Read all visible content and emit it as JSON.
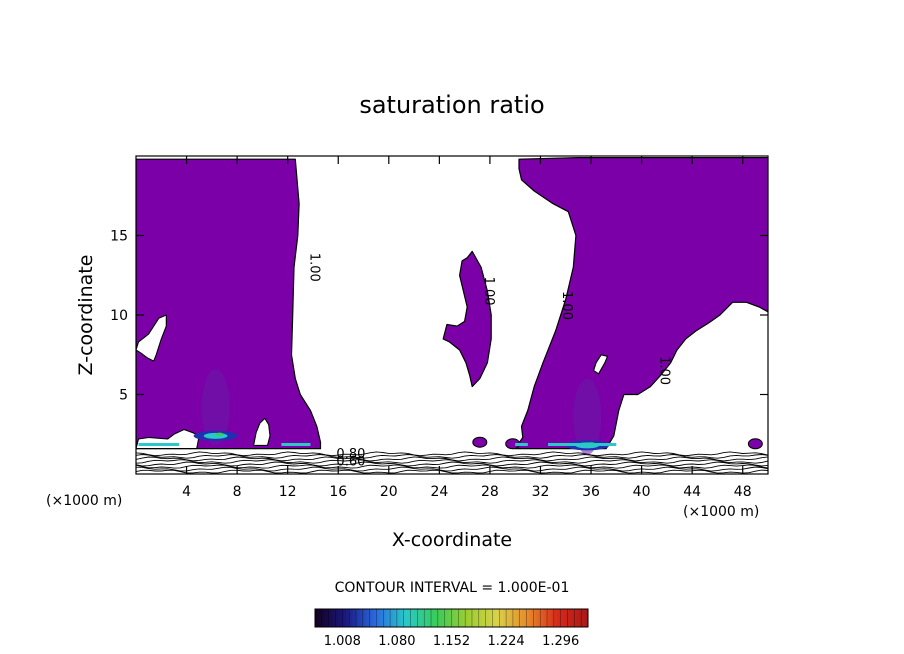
{
  "chart_data": {
    "type": "contour",
    "title": "saturation ratio",
    "xlabel": "X-coordinate",
    "ylabel": "Z-coordinate",
    "x_unit": "(×1000 m)",
    "y_unit": "(×1000 m)",
    "xlim": [
      0,
      50
    ],
    "ylim": [
      0,
      20
    ],
    "x_ticks": [
      4,
      8,
      12,
      16,
      20,
      24,
      28,
      32,
      36,
      40,
      44,
      48
    ],
    "x_tick_labels": [
      "4",
      "8",
      "12",
      "16",
      "20",
      "24",
      "28",
      "32",
      "36",
      "40",
      "44",
      "48"
    ],
    "y_ticks": [
      5,
      10,
      15
    ],
    "y_tick_labels": [
      "5",
      "10",
      "15"
    ],
    "contour_interval_label": "CONTOUR INTERVAL = 1.000E-01",
    "contour_labels": [
      {
        "text": "1.00",
        "x": 13.8,
        "z": 13.0
      },
      {
        "text": "1.00",
        "x": 27.6,
        "z": 11.5
      },
      {
        "text": "1.00",
        "x": 33.8,
        "z": 10.6
      },
      {
        "text": "1.00",
        "x": 41.5,
        "z": 6.5
      },
      {
        "text": "0.80",
        "x": 17.0,
        "z": 1.0
      },
      {
        "text": "0.60",
        "x": 17.0,
        "z": 0.55
      }
    ],
    "supersaturated_regions": [
      {
        "name": "left",
        "outline": [
          [
            0,
            19.8
          ],
          [
            12.6,
            19.8
          ],
          [
            12.9,
            17
          ],
          [
            12.8,
            15
          ],
          [
            12.5,
            13
          ],
          [
            12.4,
            10
          ],
          [
            12.3,
            7.5
          ],
          [
            12.6,
            6
          ],
          [
            13,
            5
          ],
          [
            13.8,
            4
          ],
          [
            14.3,
            3
          ],
          [
            14.6,
            2
          ],
          [
            14.6,
            1.6
          ],
          [
            0,
            1.6
          ]
        ]
      },
      {
        "name": "right",
        "outline": [
          [
            30.3,
            19.8
          ],
          [
            35,
            19.9
          ],
          [
            50,
            19.9
          ],
          [
            50,
            10.2
          ],
          [
            49.3,
            10.5
          ],
          [
            48.3,
            10.8
          ],
          [
            47.2,
            10.8
          ],
          [
            46.2,
            10
          ],
          [
            45.3,
            9.5
          ],
          [
            44.3,
            9
          ],
          [
            43.5,
            8.5
          ],
          [
            42.8,
            7.8
          ],
          [
            42.3,
            7
          ],
          [
            41.5,
            6.2
          ],
          [
            40.7,
            5.5
          ],
          [
            39.7,
            5
          ],
          [
            38.6,
            5
          ],
          [
            38.2,
            4
          ],
          [
            38,
            3.2
          ],
          [
            37.8,
            2.4
          ],
          [
            37.2,
            1.6
          ],
          [
            30,
            1.6
          ],
          [
            30.6,
            2.3
          ],
          [
            30.5,
            3
          ],
          [
            31,
            4
          ],
          [
            31.5,
            5.5
          ],
          [
            32.2,
            7
          ],
          [
            33.2,
            9
          ],
          [
            34,
            11
          ],
          [
            34.6,
            13
          ],
          [
            34.8,
            15
          ],
          [
            34.2,
            16.5
          ],
          [
            33,
            17
          ],
          [
            31.5,
            17.8
          ],
          [
            30.5,
            18.5
          ],
          [
            30.3,
            19.2
          ]
        ]
      },
      {
        "name": "island",
        "outline": [
          [
            26.2,
            13.6
          ],
          [
            26.6,
            14
          ],
          [
            27.3,
            13
          ],
          [
            27.8,
            11.5
          ],
          [
            28.1,
            10
          ],
          [
            28.1,
            8.5
          ],
          [
            27.8,
            7
          ],
          [
            27.2,
            6
          ],
          [
            26.6,
            5.5
          ],
          [
            26.4,
            6.2
          ],
          [
            26.1,
            7
          ],
          [
            25.6,
            7.8
          ],
          [
            24.8,
            8.3
          ],
          [
            24.3,
            8.5
          ],
          [
            24.6,
            9.4
          ],
          [
            25.4,
            9.3
          ],
          [
            26,
            9.6
          ],
          [
            26.2,
            10.5
          ],
          [
            25.9,
            11.5
          ],
          [
            25.6,
            12.5
          ],
          [
            25.8,
            13.4
          ]
        ]
      }
    ],
    "subsaturated_pockets": [
      {
        "outline": [
          [
            0,
            7.8
          ],
          [
            0.4,
            7.6
          ],
          [
            0.9,
            7.3
          ],
          [
            1.4,
            7.1
          ],
          [
            1.6,
            7.5
          ],
          [
            2,
            8.5
          ],
          [
            2.4,
            9.3
          ],
          [
            2.4,
            10
          ],
          [
            1.8,
            9.8
          ],
          [
            1,
            8.8
          ],
          [
            0.2,
            8.3
          ]
        ]
      },
      {
        "outline": [
          [
            36.2,
            6.5
          ],
          [
            36.4,
            7
          ],
          [
            36.8,
            7.5
          ],
          [
            37.3,
            7.4
          ],
          [
            37.1,
            7
          ],
          [
            36.6,
            6.3
          ]
        ]
      },
      {
        "outline": [
          [
            0,
            1.6
          ],
          [
            0.2,
            2.2
          ],
          [
            1,
            2.3
          ],
          [
            2.5,
            2.2
          ],
          [
            3,
            2.5
          ],
          [
            3.8,
            2.8
          ],
          [
            4.5,
            2.6
          ],
          [
            5,
            2.4
          ],
          [
            4.8,
            1.6
          ]
        ]
      },
      {
        "outline": [
          [
            9.3,
            1.8
          ],
          [
            9.5,
            2.6
          ],
          [
            9.8,
            3.2
          ],
          [
            10.2,
            3.5
          ],
          [
            10.5,
            3.1
          ],
          [
            10.6,
            2.4
          ],
          [
            10.4,
            1.8
          ]
        ]
      }
    ],
    "small_cells": [
      {
        "x": 27.2,
        "z": 2.0
      },
      {
        "x": 29.8,
        "z": 1.9
      },
      {
        "x": 49.0,
        "z": 1.9
      }
    ],
    "high_value_pockets": [
      {
        "x": 6.3,
        "z": 3.0,
        "level": 1.08
      },
      {
        "x": 35.7,
        "z": 2.4,
        "level": 1.08
      }
    ],
    "colorbar": {
      "labels": [
        "1.008",
        "1.080",
        "1.152",
        "1.224",
        "1.296"
      ],
      "values": [
        1.008,
        1.08,
        1.152,
        1.224,
        1.296
      ],
      "range": [
        0.972,
        1.332
      ],
      "colors": [
        "#14001e",
        "#1a1880",
        "#2a6adf",
        "#2ac8c8",
        "#3acc5a",
        "#9acd32",
        "#d8d24a",
        "#e68a2a",
        "#d62a1a",
        "#a81818"
      ]
    },
    "fill_color": "#7b00a7",
    "line_color": "#000000"
  }
}
